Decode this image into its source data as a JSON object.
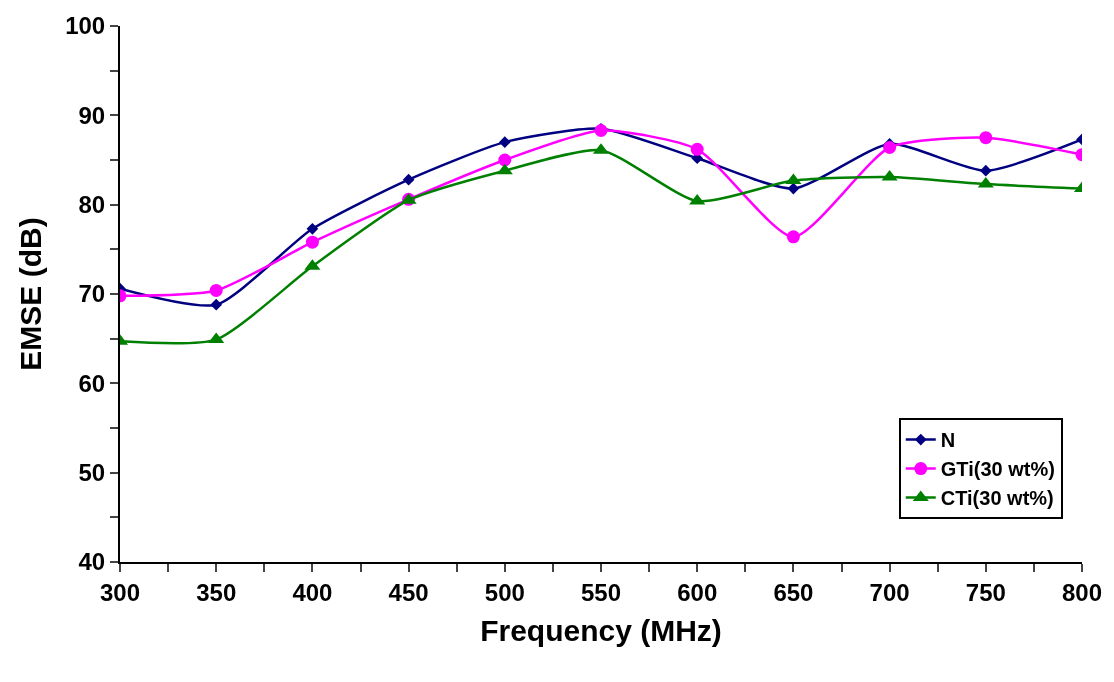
{
  "chart_data": {
    "type": "line",
    "xlabel": "Frequency (MHz)",
    "ylabel": "EMSE (dB)",
    "x": [
      300,
      350,
      400,
      450,
      500,
      550,
      600,
      650,
      700,
      750,
      800
    ],
    "series": [
      {
        "name": "N",
        "color": "#000080",
        "marker": "diamond",
        "values": [
          70.6,
          68.8,
          77.3,
          82.8,
          87.0,
          88.5,
          85.2,
          81.8,
          86.8,
          83.8,
          87.3
        ]
      },
      {
        "name": "GTi(30 wt%)",
        "color": "#ff00ff",
        "marker": "circle",
        "values": [
          69.8,
          70.4,
          75.8,
          80.6,
          85.0,
          88.3,
          86.2,
          76.4,
          86.4,
          87.5,
          85.6
        ]
      },
      {
        "name": "CTi(30 wt%)",
        "color": "#008000",
        "marker": "triangle",
        "values": [
          64.7,
          64.9,
          73.1,
          80.5,
          83.8,
          86.1,
          80.4,
          82.7,
          83.1,
          82.3,
          81.8
        ]
      }
    ],
    "xlim": [
      300,
      800
    ],
    "xticks": [
      300,
      350,
      400,
      450,
      500,
      550,
      600,
      650,
      700,
      750,
      800
    ],
    "ylim": [
      40,
      100
    ],
    "yticks": [
      40,
      50,
      60,
      70,
      80,
      90,
      100
    ],
    "legend": "bottom right"
  }
}
